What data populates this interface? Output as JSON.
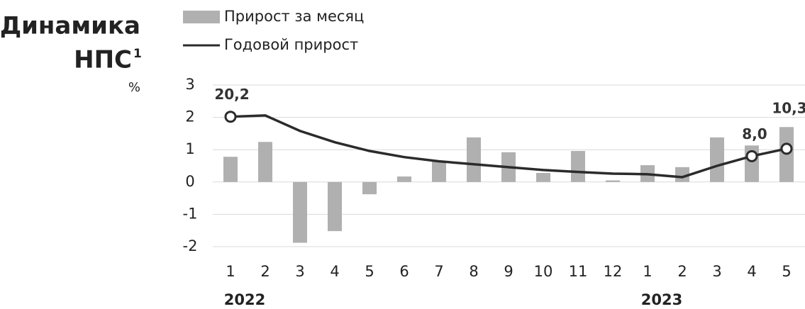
{
  "chart_data": {
    "type": "bar",
    "title": [
      "Динамика",
      "НПС"
    ],
    "title_note": "1",
    "unit": "%",
    "categories": [
      "1",
      "2",
      "3",
      "4",
      "5",
      "6",
      "7",
      "8",
      "9",
      "10",
      "11",
      "12",
      "1",
      "2",
      "3",
      "4",
      "5"
    ],
    "year_labels": [
      "2022",
      null,
      null,
      null,
      null,
      null,
      null,
      null,
      null,
      null,
      null,
      null,
      "2023",
      null,
      null,
      null,
      null
    ],
    "series": [
      {
        "name": "Прирост за месяц",
        "type": "bar",
        "color": "#b0b0b0",
        "values": [
          0.78,
          1.24,
          -1.88,
          -1.52,
          -0.38,
          0.17,
          0.65,
          1.38,
          0.92,
          0.28,
          0.96,
          0.05,
          0.52,
          0.46,
          1.38,
          1.13,
          1.7
        ]
      },
      {
        "name": "Годовой прирост",
        "type": "line",
        "axis": "y2",
        "color": "#2b2b2b",
        "values": [
          20.2,
          20.6,
          15.8,
          12.3,
          9.6,
          7.7,
          6.4,
          5.5,
          4.6,
          3.7,
          3.1,
          2.6,
          2.4,
          1.5,
          5.0,
          8.0,
          10.3
        ],
        "value_labels": [
          "20,2",
          null,
          null,
          null,
          null,
          null,
          null,
          null,
          null,
          null,
          null,
          null,
          null,
          null,
          null,
          "8,0",
          "10,3"
        ]
      }
    ],
    "ylim": [
      -2,
      3
    ],
    "yticks": [
      -2,
      -1,
      0,
      1,
      2,
      3
    ],
    "y2lim": [
      -20,
      30
    ],
    "grid": true
  }
}
